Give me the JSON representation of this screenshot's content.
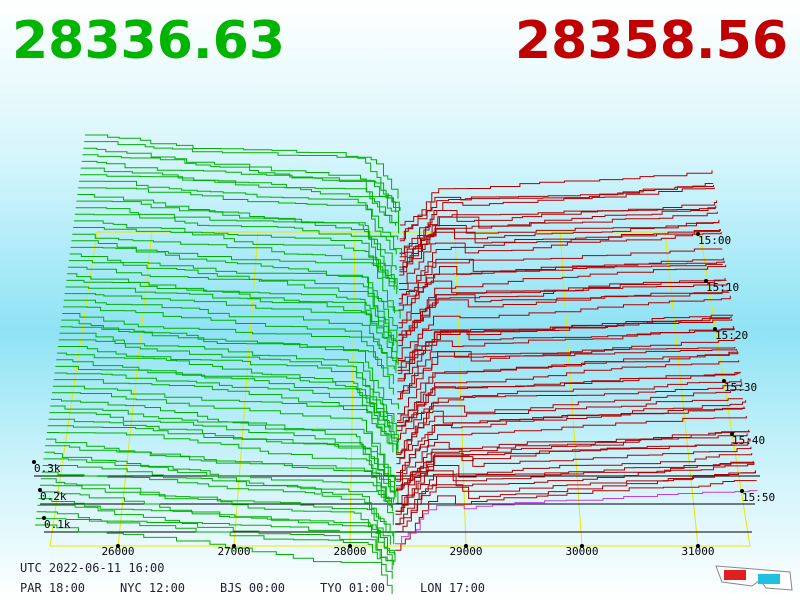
{
  "header": {
    "bid": "28336.63",
    "ask": "28358.56"
  },
  "axes": {
    "price_ticks": [
      "26000",
      "27000",
      "28000",
      "29000",
      "30000",
      "31000"
    ],
    "volume_ticks": [
      "0.3k",
      "0.2k",
      "0.1k"
    ],
    "time_ticks": [
      "15:00",
      "15:10",
      "15:20",
      "15:30",
      "15:40",
      "15:50"
    ]
  },
  "footer": {
    "utc": "UTC 2022-06-11 16:00",
    "clocks": [
      "PAR 18:00",
      "NYC 12:00",
      "BJS 00:00",
      "TYO 01:00",
      "LON 17:00"
    ]
  }
}
